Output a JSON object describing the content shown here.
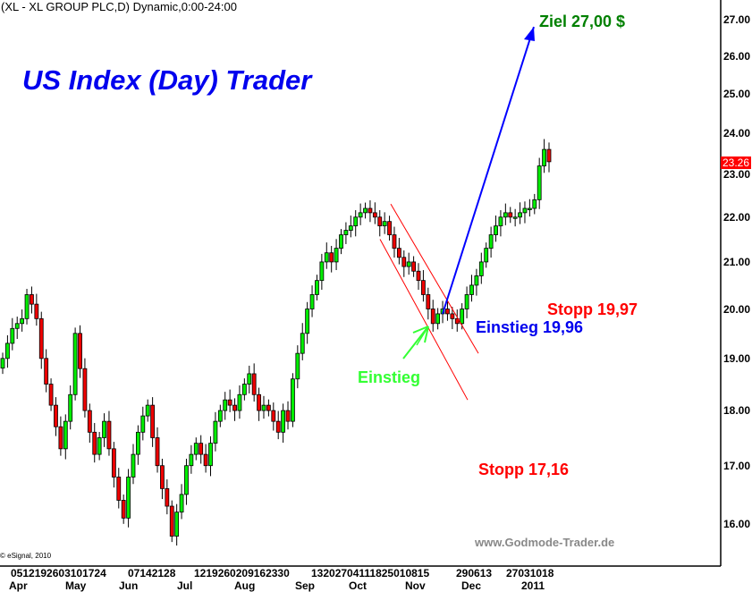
{
  "header": {
    "title": "(XL - XL GROUP PLC,D) Dynamic,0:00-24:00"
  },
  "watermark": {
    "title": "US Index (Day) Trader",
    "site": "www.Godmode-Trader.de",
    "copyright": "© eSignal, 2010"
  },
  "annotations": {
    "target": "Ziel 27,00 $",
    "stop_high": "Stopp 19,97",
    "entry_price": "Einstieg 19,96",
    "entry": "Einstieg",
    "stop_low": "Stopp 17,16"
  },
  "colors": {
    "up": "#00ee00",
    "down": "#ee0000",
    "target": "#008000",
    "stop": "#ff0000",
    "entry_price": "#0000ee",
    "entry": "#33ff33",
    "trend_arrow": "#0000ff",
    "channel": "#ff0000"
  },
  "chart_data": {
    "type": "candlestick",
    "title": "(XL - XL GROUP PLC,D) Dynamic,0:00-24:00",
    "y_scale": "log",
    "ylim": [
      15.5,
      27.5
    ],
    "y_ticks": [
      "16.00",
      "17.00",
      "18.00",
      "19.00",
      "20.00",
      "21.00",
      "22.00",
      "23.00",
      "24.00",
      "25.00",
      "26.00",
      "27.00"
    ],
    "last_price": "23.26",
    "x_day_labels": [
      "0512192603101724",
      "07142128",
      "1219260209162330",
      "13202704111825010815",
      "290613",
      "27031018"
    ],
    "x_month_labels": [
      "Apr",
      "May",
      "Jun",
      "Jul",
      "Aug",
      "Sep",
      "Oct",
      "Nov",
      "Dec",
      "2011"
    ],
    "closes": [
      19.0,
      19.3,
      19.6,
      19.7,
      19.8,
      20.3,
      20.1,
      19.8,
      19.0,
      18.5,
      18.1,
      17.7,
      17.3,
      17.8,
      18.3,
      19.5,
      18.8,
      18.0,
      17.6,
      17.2,
      17.5,
      17.8,
      17.3,
      16.8,
      16.4,
      16.1,
      16.8,
      17.2,
      17.6,
      17.9,
      18.1,
      17.5,
      17.0,
      16.6,
      16.3,
      15.8,
      16.2,
      16.5,
      17.0,
      17.2,
      17.4,
      17.2,
      17.0,
      17.4,
      17.8,
      18.0,
      18.2,
      18.1,
      18.0,
      18.3,
      18.5,
      18.7,
      18.3,
      18.0,
      18.1,
      18.0,
      17.8,
      17.6,
      18.0,
      17.8,
      18.6,
      19.1,
      19.5,
      20.0,
      20.3,
      20.6,
      21.0,
      21.2,
      21.0,
      21.3,
      21.6,
      21.7,
      21.8,
      22.0,
      22.1,
      22.2,
      22.1,
      22.0,
      21.8,
      21.9,
      21.6,
      21.3,
      21.1,
      20.9,
      21.0,
      20.8,
      20.6,
      20.3,
      20.0,
      19.7,
      19.9,
      20.0,
      19.9,
      19.8,
      19.7,
      20.0,
      20.3,
      20.5,
      20.7,
      21.0,
      21.3,
      21.6,
      21.8,
      22.0,
      22.1,
      22.0,
      22.0,
      22.1,
      22.2,
      22.2,
      22.4,
      23.2,
      23.6,
      23.3
    ],
    "trend_lines": [
      {
        "name": "target-arrow",
        "from_price": 19.9,
        "to_price": 26.8
      },
      {
        "name": "channel-upper",
        "from_price": 22.3,
        "to_price": 19.1
      },
      {
        "name": "channel-lower",
        "from_price": 21.5,
        "to_price": 18.2
      }
    ]
  }
}
